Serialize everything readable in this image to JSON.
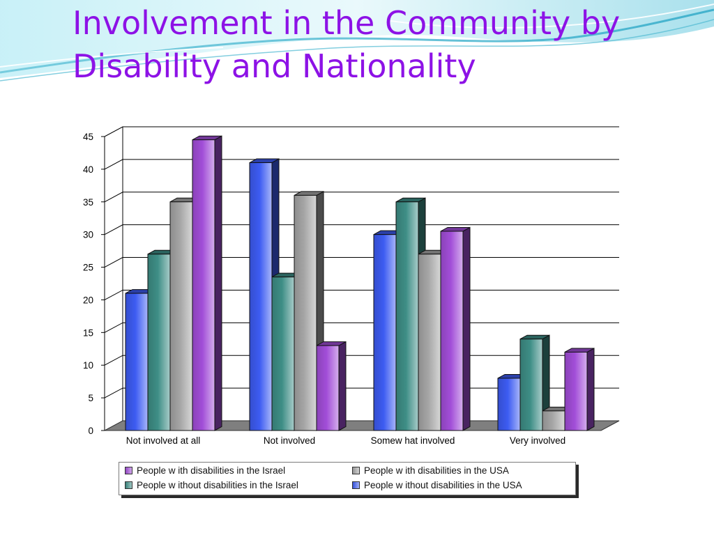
{
  "slide": {
    "title_line1": "Involvement in the Community by",
    "title_line2": "Disability and Nationality"
  },
  "colors": {
    "title": "#8d12e6",
    "usa_without": "#3d5cf2",
    "israel_without": "#3e8e86",
    "usa_with": "#a6a6a6",
    "israel_with": "#a24ed8"
  },
  "chart_data": {
    "type": "bar",
    "style": "3d clustered column",
    "categories": [
      "Not involved at all",
      "Not involved",
      "Somew hat involved",
      "Very involved"
    ],
    "ylim": [
      0,
      45
    ],
    "yticks": [
      0,
      5,
      10,
      15,
      20,
      25,
      30,
      35,
      40,
      45
    ],
    "grid": true,
    "legend_position": "bottom",
    "series": [
      {
        "name": "People w ithout disabilities in the USA",
        "color": "#3d5cf2",
        "values": [
          21,
          41,
          30,
          8
        ]
      },
      {
        "name": "People w ithout disabilities in the Israel",
        "color": "#3e8e86",
        "values": [
          27,
          23.5,
          35,
          14
        ]
      },
      {
        "name": "People w ith disabilities in the USA",
        "color": "#a6a6a6",
        "values": [
          35,
          36,
          27,
          3
        ]
      },
      {
        "name": "People w ith disabilities in the Israel",
        "color": "#a24ed8",
        "values": [
          44.5,
          13,
          30.5,
          12
        ]
      }
    ],
    "legend_order": [
      3,
      2,
      1,
      0
    ]
  }
}
